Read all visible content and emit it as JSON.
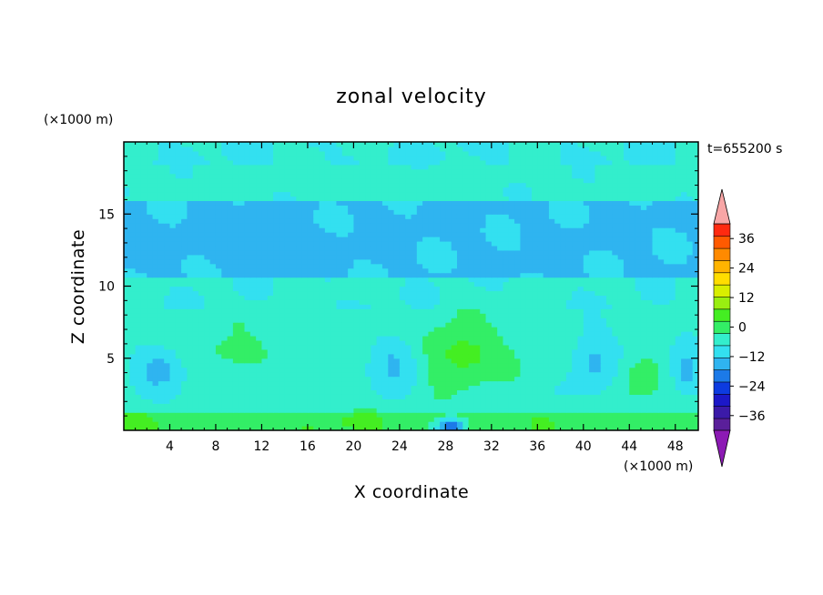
{
  "chart_data": {
    "type": "heatmap",
    "title": "zonal velocity",
    "xlabel": "X coordinate",
    "ylabel": "Z coordinate",
    "x_unit": "(×1000 m)",
    "y_unit": "(×1000 m)",
    "time_label": "t=655200 s",
    "xlim": [
      0,
      50
    ],
    "ylim": [
      0,
      20
    ],
    "x_ticks": [
      4,
      8,
      12,
      16,
      20,
      24,
      28,
      32,
      36,
      40,
      44,
      48
    ],
    "x_tick_labels": [
      "4",
      "8",
      "12",
      "16",
      "20",
      "24",
      "28",
      "32",
      "36",
      "40",
      "44",
      "48"
    ],
    "y_ticks": [
      5,
      10,
      15
    ],
    "y_tick_labels": [
      "5",
      "10",
      "15"
    ],
    "colorbar": {
      "min": -42,
      "max": 42,
      "step": 6,
      "tick_values": [
        36,
        24,
        12,
        0,
        -12,
        -24,
        -36
      ],
      "tick_labels": [
        "36",
        "24",
        "12",
        "0",
        "−12",
        "−24",
        "−36"
      ],
      "extend": "both",
      "colors": [
        "#5a1f9a",
        "#3b1aa8",
        "#1c18c8",
        "#0d3be0",
        "#1c7ae8",
        "#2fb4f0",
        "#33e0f0",
        "#33eecc",
        "#33ee66",
        "#44ee22",
        "#99ee11",
        "#d8ee00",
        "#ffdd00",
        "#ffb400",
        "#ff8a00",
        "#ff5a00",
        "#ff2a10"
      ],
      "under_color": "#8c1ab4",
      "over_color": "#f8a6a6"
    },
    "fields": {
      "description_free_levels": [
        -18,
        -12,
        -6,
        0,
        6,
        12,
        18
      ],
      "layers": [
        {
          "z_range": [
            0,
            1.2
          ],
          "value": 10
        },
        {
          "z_range": [
            1.2,
            8.5
          ],
          "value": 3
        },
        {
          "z_range": [
            8.5,
            10.5
          ],
          "value": 1
        },
        {
          "z_range": [
            10.5,
            16
          ],
          "value": -7
        },
        {
          "z_range": [
            16,
            18.5
          ],
          "value": 2
        },
        {
          "z_range": [
            18.5,
            20
          ],
          "value": 0
        }
      ],
      "blobs": [
        {
          "x": 29.5,
          "z": 5.3,
          "rx": 3.5,
          "rz": 2.0,
          "value": 14
        },
        {
          "x": 20.5,
          "z": 0.6,
          "rx": 2.5,
          "rz": 0.7,
          "value": 13
        },
        {
          "x": 44.8,
          "z": 3.8,
          "rx": 2.3,
          "rz": 1.6,
          "value": 10
        },
        {
          "x": 10.0,
          "z": 5.5,
          "rx": 4.5,
          "rz": 1.6,
          "value": 7
        },
        {
          "x": 38.0,
          "z": 5.5,
          "rx": 3.0,
          "rz": 1.3,
          "value": 7
        },
        {
          "x": 3.0,
          "z": 4.2,
          "rx": 2.2,
          "rz": 1.8,
          "value": -8
        },
        {
          "x": 23.5,
          "z": 4.5,
          "rx": 2.0,
          "rz": 2.2,
          "value": -7
        },
        {
          "x": 41.0,
          "z": 4.8,
          "rx": 2.3,
          "rz": 2.3,
          "value": -7
        },
        {
          "x": 49.0,
          "z": 4.2,
          "rx": 1.5,
          "rz": 1.8,
          "value": -8
        },
        {
          "x": 28.5,
          "z": 0.3,
          "rx": 1.2,
          "rz": 0.6,
          "value": -18
        },
        {
          "x": 12.0,
          "z": 12.8,
          "rx": 5.0,
          "rz": 1.0,
          "value": -12
        },
        {
          "x": 17.0,
          "z": 17.6,
          "rx": 3.0,
          "rz": 0.6,
          "value": 6
        },
        {
          "x": 1.0,
          "z": 0.5,
          "rx": 1.5,
          "rz": 0.6,
          "value": 14
        },
        {
          "x": 12.5,
          "z": 0.5,
          "rx": 1.8,
          "rz": 0.6,
          "value": 11
        }
      ]
    }
  }
}
